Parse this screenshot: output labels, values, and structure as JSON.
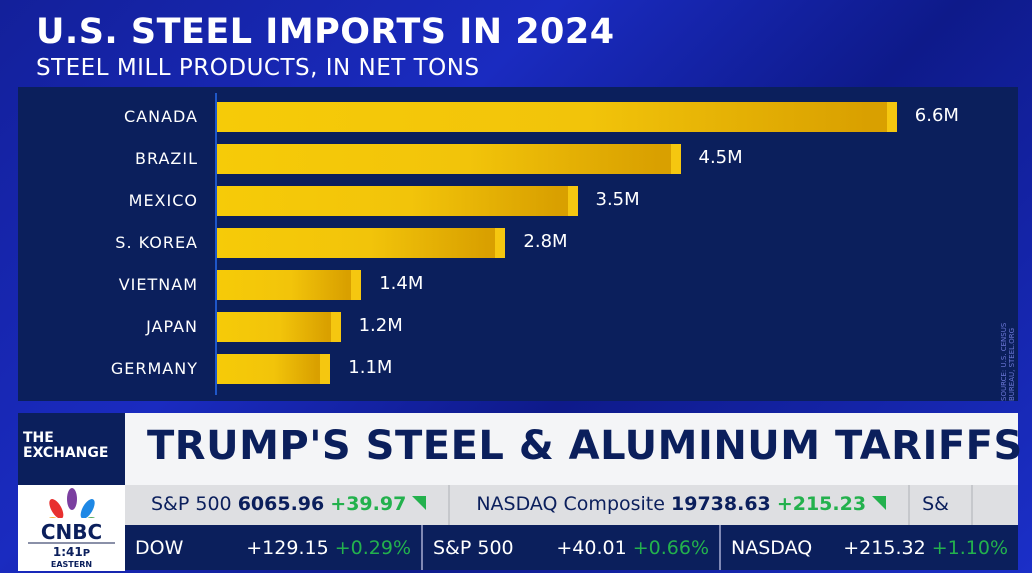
{
  "chart_data": {
    "type": "bar",
    "orientation": "horizontal",
    "title": "U.S. STEEL IMPORTS IN 2024",
    "subtitle": "STEEL MILL PRODUCTS, IN NET TONS",
    "categories": [
      "CANADA",
      "BRAZIL",
      "MEXICO",
      "S. KOREA",
      "VIETNAM",
      "JAPAN",
      "GERMANY"
    ],
    "values": [
      6.6,
      4.5,
      3.5,
      2.8,
      1.4,
      1.2,
      1.1
    ],
    "value_labels": [
      "6.6M",
      "4.5M",
      "3.5M",
      "2.8M",
      "1.4M",
      "1.2M",
      "1.1M"
    ],
    "unit": "million net tons",
    "xlim": [
      0,
      7.5
    ],
    "grid": false,
    "source": "SOURCE: U.S. CENSUS BUREAU, STEEL.ORG",
    "bar_color": "#f2c40a"
  },
  "show": "THE EXCHANGE",
  "headline": "TRUMP'S STEEL & ALUMINUM TARIFFS",
  "network": {
    "logo": "CNBC",
    "time": "1:41",
    "ampm": "P",
    "zone": "EASTERN"
  },
  "ticker": [
    {
      "name": "S&P 500",
      "value": "6065.96",
      "change": "+39.97"
    },
    {
      "name": "NASDAQ Composite",
      "value": "19738.63",
      "change": "+215.23"
    },
    {
      "name": "S&",
      "value": "",
      "change": ""
    }
  ],
  "bottom": [
    {
      "name": "DOW",
      "change": "+129.15",
      "pct": "+0.29%"
    },
    {
      "name": "S&P 500",
      "change": "+40.01",
      "pct": "+0.66%"
    },
    {
      "name": "NASDAQ",
      "change": "+215.32",
      "pct": "+1.10%"
    }
  ]
}
